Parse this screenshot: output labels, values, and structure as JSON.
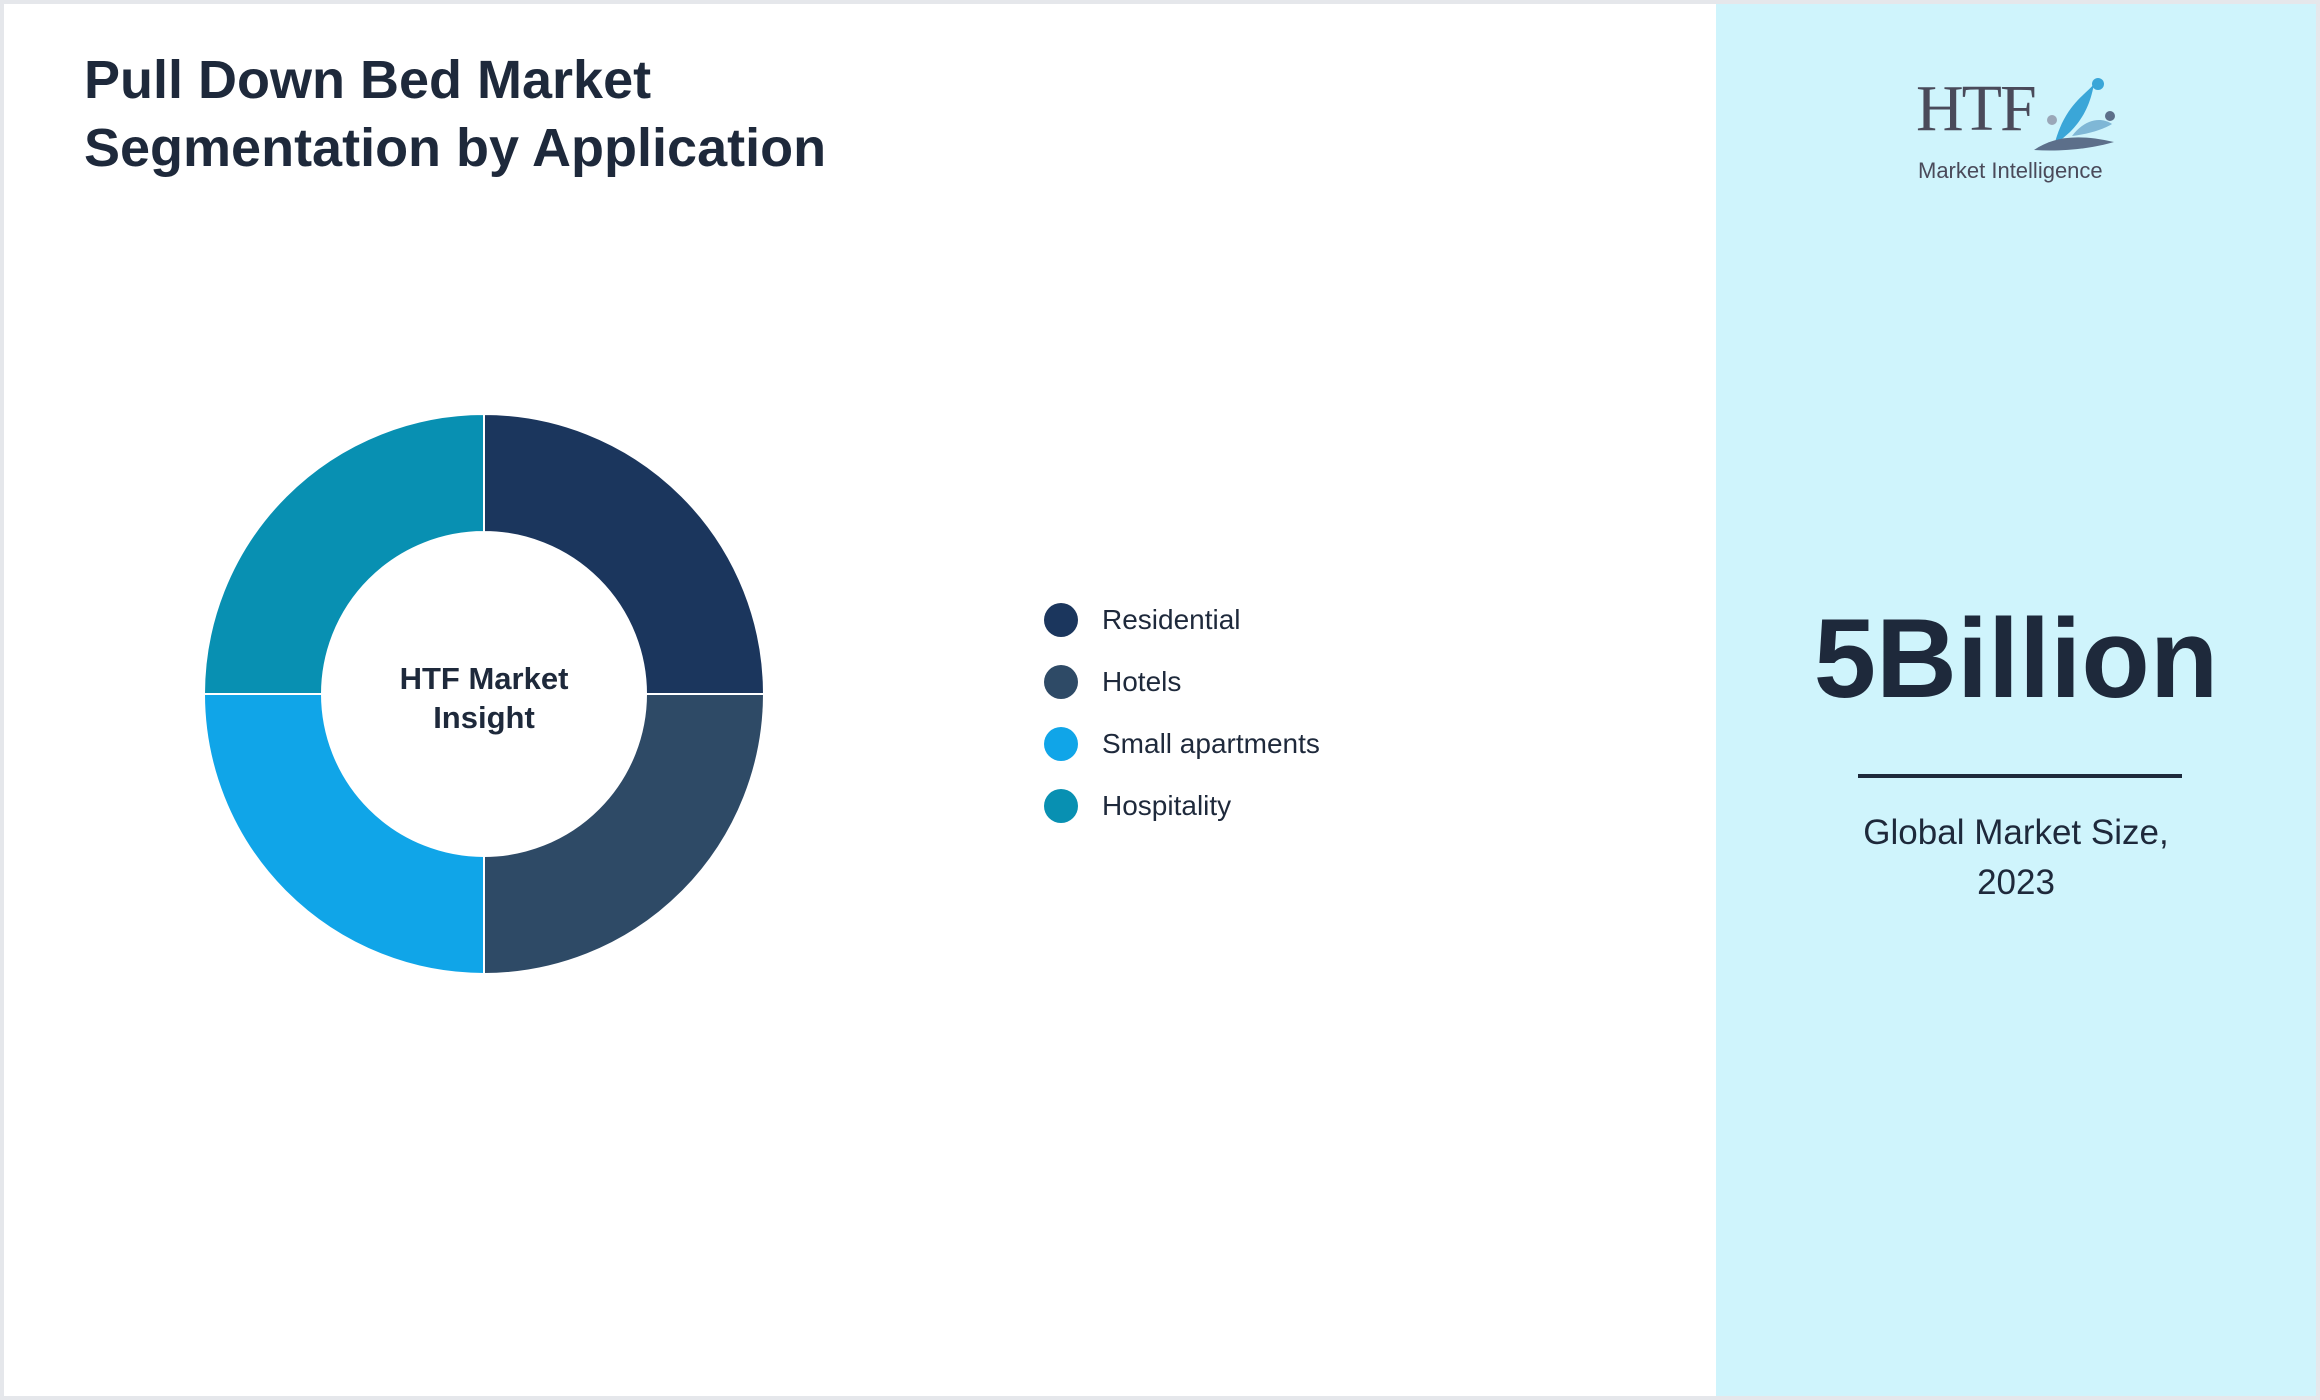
{
  "title": {
    "line1": "Pull Down Bed Market",
    "line2": "Segmentation by Application"
  },
  "chart_data": {
    "type": "pie",
    "title": "Pull Down Bed Market Segmentation by Application",
    "center_label": {
      "line1": "HTF Market",
      "line2": "Insight"
    },
    "categories": [
      "Residential",
      "Hotels",
      "Small apartments",
      "Hospitality"
    ],
    "values": [
      25,
      25,
      25,
      25
    ],
    "colors": [
      "#1b365d",
      "#2e4a66",
      "#10a5e8",
      "#0890b2"
    ],
    "legend_position": "right"
  },
  "logo": {
    "text": "HTF",
    "subtitle": "Market Intelligence"
  },
  "kpi": {
    "value": "5Billion",
    "caption_line1": "Global Market Size,",
    "caption_line2": "2023"
  }
}
